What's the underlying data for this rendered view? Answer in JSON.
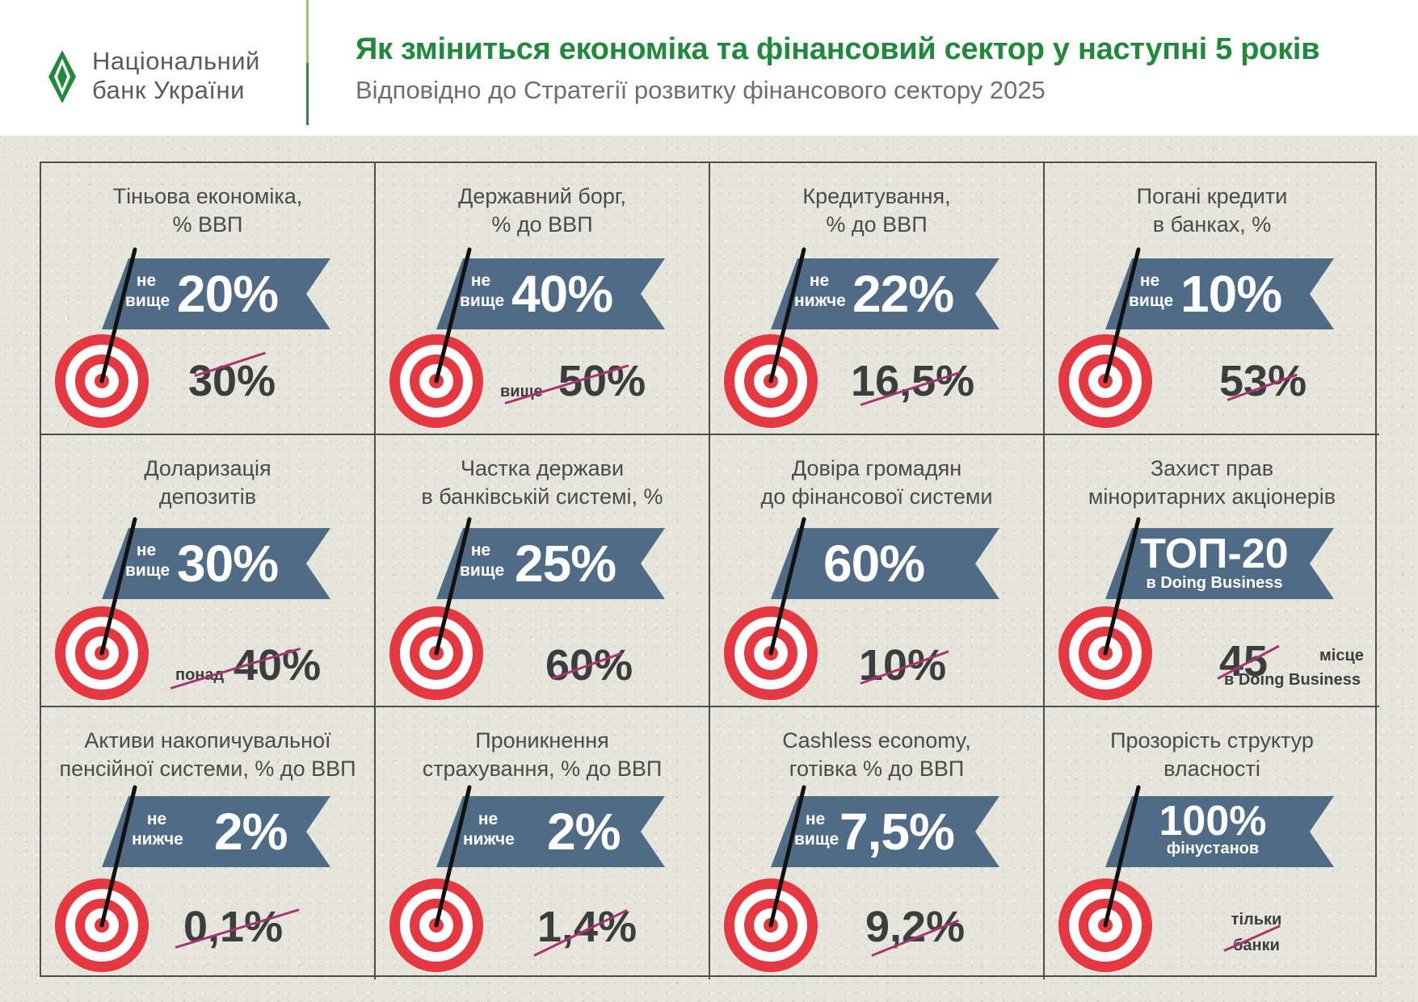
{
  "header": {
    "logo_line1": "Національний",
    "logo_line2": "банк України",
    "title": "Як зміниться економіка та фінансовий сектор у наступні 5 років",
    "subtitle": "Відповідно до Стратегії розвитку фінансового сектору 2025"
  },
  "colors": {
    "brand_green": "#1f8a3b",
    "flag": "#4f6b85",
    "target_red": "#e53840",
    "strike": "#a83572",
    "grid_line": "#4d4d4d"
  },
  "cells": [
    {
      "title1": "Тіньова економіка,",
      "title2": "% ВВП",
      "q1": "не",
      "q2": "вище",
      "target": "20%",
      "old": "30%",
      "old_prefix": ""
    },
    {
      "title1": "Державний борг,",
      "title2": "% до ВВП",
      "q1": "не",
      "q2": "вище",
      "target": "40%",
      "old": "50%",
      "old_prefix": "вище"
    },
    {
      "title1": "Кредитування,",
      "title2": "% до ВВП",
      "q1": "не",
      "q2": "нижче",
      "target": "22%",
      "old": "16,5%",
      "old_prefix": ""
    },
    {
      "title1": "Погані кредити",
      "title2": "в банках, %",
      "q1": "не",
      "q2": "вище",
      "target": "10%",
      "old": "53%",
      "old_prefix": ""
    },
    {
      "title1": "Доларизація",
      "title2": "депозитів",
      "q1": "не",
      "q2": "вище",
      "target": "30%",
      "old": "40%",
      "old_prefix": "понад"
    },
    {
      "title1": "Частка держави",
      "title2": "в банківській системі, %",
      "q1": "не",
      "q2": "вище",
      "target": "25%",
      "old": "60%",
      "old_prefix": ""
    },
    {
      "title1": "Довіра громадян",
      "title2": "до фінансової системи",
      "target": "60%",
      "old": "10%"
    },
    {
      "title1": "Захист прав",
      "title2": "міноритарних акціонерів",
      "target": "ТОП-20",
      "target_sub": "в Doing Business",
      "old": "45",
      "old_suffix": "місце",
      "old_sub": "в Doing Business"
    },
    {
      "title1": "Активи накопичувальної",
      "title2": "пенсійної системи, % до ВВП",
      "q1": "не",
      "q2": "нижче",
      "target": "2%",
      "old": "0,1%",
      "old_prefix": ""
    },
    {
      "title1": "Проникнення",
      "title2": "страхування, % до ВВП",
      "q1": "не",
      "q2": "нижче",
      "target": "2%",
      "old": "1,4%",
      "old_prefix": ""
    },
    {
      "title1": "Cashless economy,",
      "title2": "готівка % до ВВП",
      "q1": "не",
      "q2": "вище",
      "target": "7,5%",
      "old": "9,2%",
      "old_prefix": ""
    },
    {
      "title1": "Прозорість структур",
      "title2": "власності",
      "target": "100%",
      "target_sub": "фінустанов",
      "old1": "тільки",
      "old2": "банки"
    }
  ]
}
